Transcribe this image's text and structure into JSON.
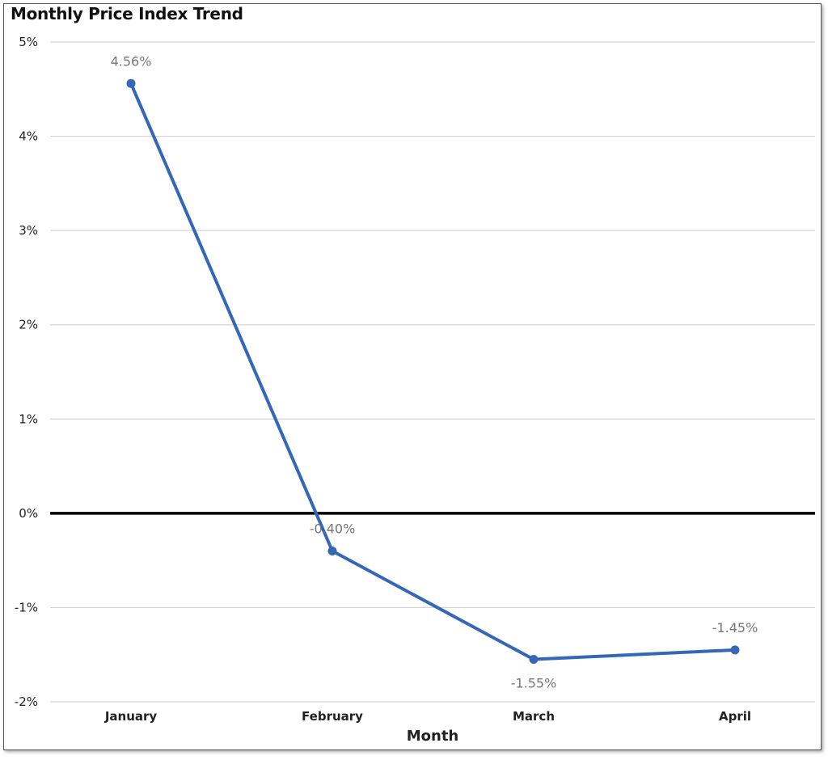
{
  "chart_data": {
    "type": "line",
    "title": "Monthly Price Index Trend",
    "xlabel": "Month",
    "ylabel": "",
    "categories": [
      "January",
      "February",
      "March",
      "April"
    ],
    "series": [
      {
        "values": [
          4.56,
          -0.4,
          -1.55,
          -1.45
        ],
        "data_labels": [
          "4.56%",
          "-0.40%",
          "-1.55%",
          "-1.45%"
        ],
        "color": "#3467b8"
      }
    ],
    "ylim": [
      -2,
      5
    ],
    "yticks": [
      5,
      4,
      3,
      2,
      1,
      0,
      -1,
      -2
    ],
    "ytick_labels": [
      "5%",
      "4%",
      "3%",
      "2%",
      "1%",
      "0%",
      "-1%",
      "-2%"
    ],
    "grid": true,
    "zero_line": true,
    "legend": "none"
  }
}
